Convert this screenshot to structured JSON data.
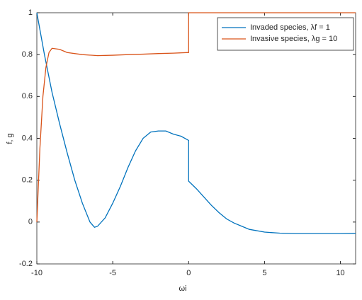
{
  "chart_data": {
    "type": "line",
    "xlabel": "ωi",
    "ylabel": "f, g",
    "xlim": [
      -10,
      11
    ],
    "ylim": [
      -0.2,
      1
    ],
    "xticks": [
      -10,
      -5,
      0,
      5,
      10
    ],
    "yticks": [
      -0.2,
      0,
      0.2,
      0.4,
      0.6,
      0.8,
      1
    ],
    "legend": "top-right",
    "series": [
      {
        "name": "Invaded species, λf = 1",
        "color": "#0072bd",
        "x": [
          -10,
          -9.5,
          -9,
          -8.5,
          -8,
          -7.5,
          -7,
          -6.5,
          -6.2,
          -6,
          -5.5,
          -5,
          -4.5,
          -4,
          -3.5,
          -3,
          -2.5,
          -2,
          -1.5,
          -1,
          -0.5,
          0,
          0,
          0.5,
          1,
          1.5,
          2,
          2.5,
          3,
          3.5,
          4,
          5,
          6,
          7,
          8,
          9,
          10,
          11
        ],
        "values": [
          1,
          0.8,
          0.62,
          0.47,
          0.33,
          0.2,
          0.09,
          0.0,
          -0.025,
          -0.02,
          0.02,
          0.09,
          0.17,
          0.26,
          0.34,
          0.4,
          0.43,
          0.435,
          0.435,
          0.42,
          0.41,
          0.39,
          0.195,
          0.16,
          0.12,
          0.08,
          0.045,
          0.015,
          -0.005,
          -0.02,
          -0.035,
          -0.048,
          -0.053,
          -0.055,
          -0.055,
          -0.055,
          -0.055,
          -0.054
        ]
      },
      {
        "name": "Invasive species, λg = 10",
        "color": "#d95319",
        "x": [
          -10,
          -9.8,
          -9.6,
          -9.4,
          -9.2,
          -9,
          -8.5,
          -8,
          -7,
          -6,
          -5,
          -4,
          -3,
          -2,
          -1,
          0,
          0,
          11
        ],
        "values": [
          0,
          0.35,
          0.6,
          0.74,
          0.81,
          0.83,
          0.825,
          0.81,
          0.8,
          0.795,
          0.797,
          0.8,
          0.802,
          0.805,
          0.807,
          0.81,
          1,
          1
        ]
      }
    ]
  }
}
